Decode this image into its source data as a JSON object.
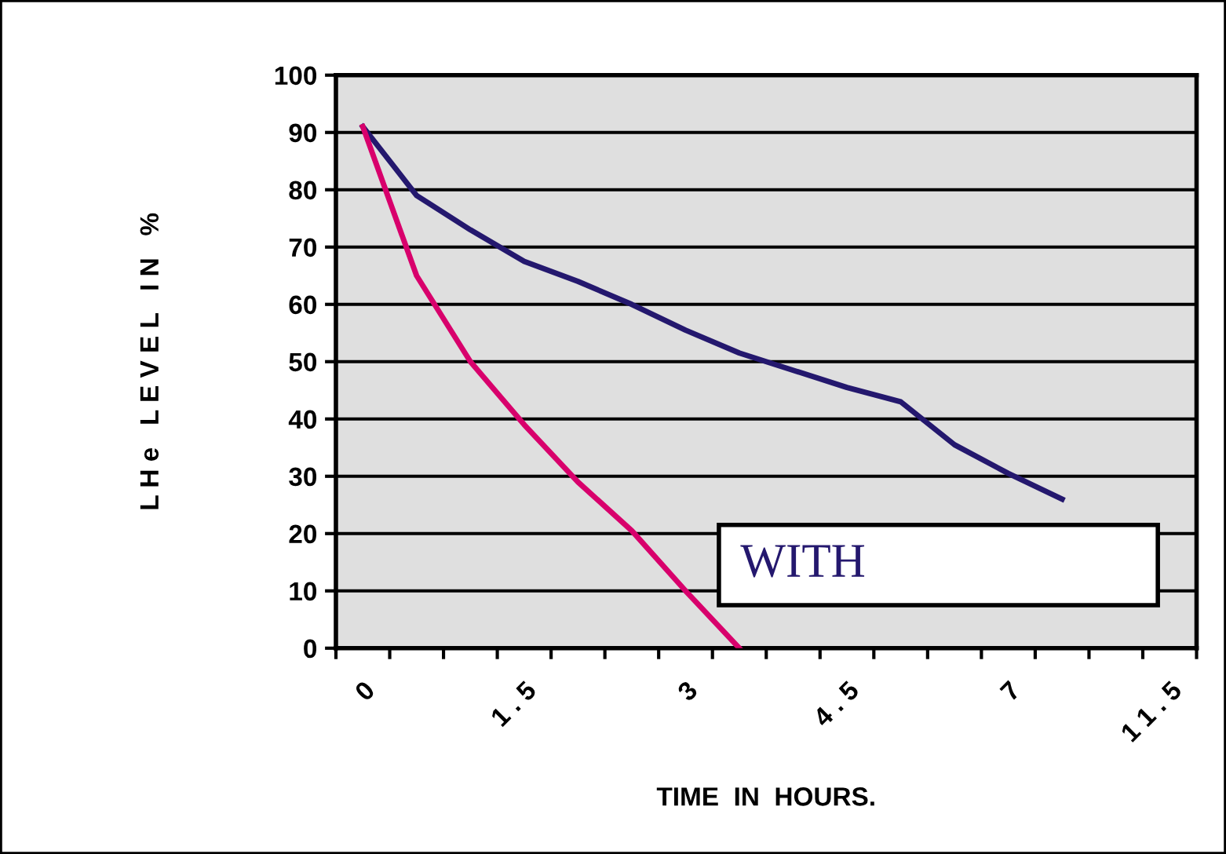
{
  "chart_data": {
    "type": "line",
    "xlabel": "TIME  IN  HOURS.",
    "ylabel": "L H e   L E V E L   I N   %",
    "categories": [
      "0",
      null,
      null,
      "1 . 5",
      null,
      null,
      "3",
      null,
      null,
      "4 . 5",
      null,
      null,
      "7",
      null,
      null,
      "1 1 . 5"
    ],
    "series": [
      {
        "color": "#24186e",
        "values": [
          91,
          79,
          73,
          67.5,
          64,
          60,
          55.5,
          51.5,
          48.5,
          45.5,
          43,
          35.5,
          30.5,
          26,
          null,
          null
        ]
      },
      {
        "color": "#d8006c",
        "values": [
          91,
          65,
          50,
          39,
          29,
          20.5,
          10,
          0,
          null,
          null,
          null,
          null,
          null,
          null,
          null,
          null
        ]
      }
    ],
    "ylim": [
      0,
      100
    ],
    "yticks": [
      0,
      10,
      20,
      30,
      40,
      50,
      60,
      70,
      80,
      90,
      100
    ],
    "grid": "y",
    "legend": false,
    "marker": "none",
    "line_style": "solid",
    "annotations": [
      "WITH"
    ]
  }
}
